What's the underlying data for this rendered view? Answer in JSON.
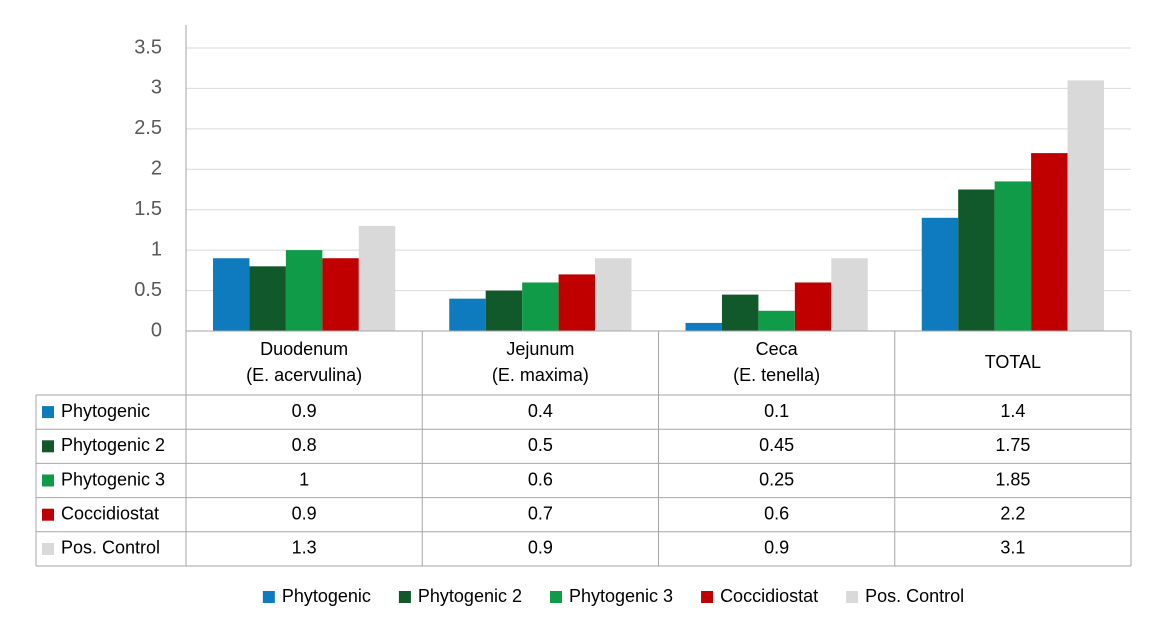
{
  "chart_data": {
    "type": "bar",
    "categories": [
      [
        "Duodenum",
        "(E. acervulina)"
      ],
      [
        "Jejunum",
        "(E. maxima)"
      ],
      [
        "Ceca",
        "(E. tenella)"
      ],
      [
        "TOTAL"
      ]
    ],
    "series": [
      {
        "name": "Phytogenic",
        "color": "#0e7bbf",
        "values": [
          0.9,
          0.4,
          0.1,
          1.4
        ]
      },
      {
        "name": "Phytogenic 2",
        "color": "#11592a",
        "values": [
          0.8,
          0.5,
          0.45,
          1.75
        ]
      },
      {
        "name": "Phytogenic 3",
        "color": "#0f9b48",
        "values": [
          1,
          0.6,
          0.25,
          1.85
        ]
      },
      {
        "name": "Coccidiostat",
        "color": "#c00000",
        "values": [
          0.9,
          0.7,
          0.6,
          2.2
        ]
      },
      {
        "name": "Pos. Control",
        "color": "#d9d9d9",
        "values": [
          1.3,
          0.9,
          0.9,
          3.1
        ]
      }
    ],
    "ylim": [
      0,
      3.5
    ],
    "yticks": [
      0,
      0.5,
      1,
      1.5,
      2,
      2.5,
      3,
      3.5
    ],
    "grid": true,
    "legend": "bottom",
    "data_table": true
  }
}
